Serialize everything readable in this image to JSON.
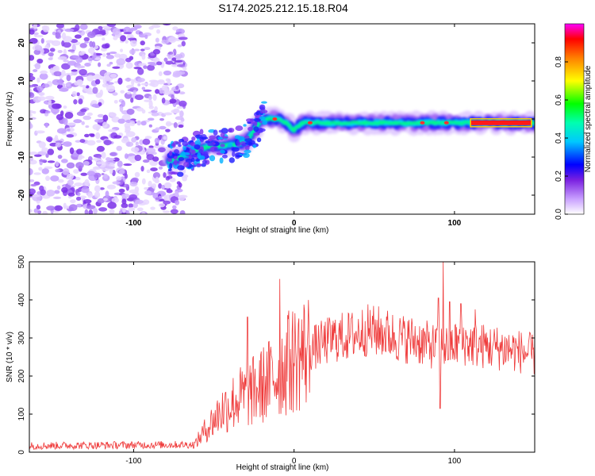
{
  "title": "S174.2025.212.15.18.R04",
  "chart_data": [
    {
      "type": "heatmap",
      "xlabel": "Height of straight line (km)",
      "ylabel": "Frequency (Hz)",
      "xlim": [
        -165,
        150
      ],
      "ylim": [
        -25,
        25
      ],
      "x_ticks": [
        -100,
        0,
        100
      ],
      "y_ticks": [
        -20,
        -10,
        0,
        10,
        20
      ],
      "colorbar": {
        "label": "Normalized spectral amplitude",
        "range": [
          0.0,
          1.0
        ],
        "ticks": [
          "0.0",
          "0.2",
          "0.4",
          "0.6",
          "0.8"
        ],
        "colors": [
          "#ffffff",
          "#9b30ff",
          "#0000ff",
          "#00ffff",
          "#00ff00",
          "#ffff00",
          "#ff0000",
          "#ff00ff"
        ]
      },
      "noise_region_x": [
        -165,
        -68
      ],
      "ridge": {
        "x": [
          -78,
          -70,
          -60,
          -50,
          -40,
          -30,
          -25,
          -20,
          -15,
          -10,
          -5,
          0,
          5,
          10,
          20,
          40,
          60,
          80,
          100,
          110,
          150
        ],
        "freq": [
          -11,
          -10,
          -8,
          -7,
          -7,
          -6,
          -3,
          0,
          0,
          0,
          -1,
          -3,
          -1,
          -1,
          -1,
          -1,
          -1,
          -1,
          -1,
          -1,
          -1
        ]
      }
    },
    {
      "type": "line",
      "xlabel": "Height of straight line (km)",
      "ylabel": "SNR (10 * v/v)",
      "xlim": [
        -165,
        150
      ],
      "ylim": [
        0,
        500
      ],
      "x_ticks": [
        -100,
        0,
        100
      ],
      "y_ticks": [
        0,
        100,
        200,
        300,
        400,
        500
      ],
      "color": "#ef3b3b",
      "envelope": {
        "x": [
          -165,
          -62,
          -55,
          -45,
          -35,
          -25,
          -15,
          -5,
          5,
          15,
          25,
          35,
          45,
          55,
          65,
          75,
          85,
          95,
          105,
          115,
          125,
          135,
          150
        ],
        "snr": [
          17,
          20,
          60,
          110,
          140,
          160,
          190,
          230,
          260,
          280,
          300,
          305,
          320,
          315,
          300,
          295,
          280,
          275,
          290,
          280,
          275,
          270,
          255
        ]
      },
      "spikes": [
        {
          "x": -9,
          "snr": 455
        },
        {
          "x": -29,
          "snr": 355
        },
        {
          "x": -4,
          "snr": 360
        },
        {
          "x": 93,
          "snr": 500
        },
        {
          "x": 90,
          "snr": 405
        },
        {
          "x": 97,
          "snr": 395
        },
        {
          "x": 104,
          "snr": 390
        },
        {
          "x": 113,
          "snr": 375
        },
        {
          "x": 91,
          "snr": 115
        }
      ]
    }
  ]
}
